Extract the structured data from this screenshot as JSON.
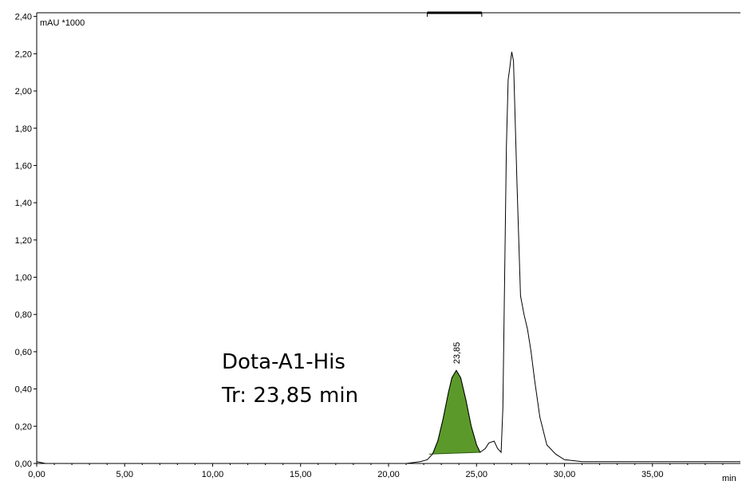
{
  "chart_data": {
    "type": "line",
    "y_unit_label": "mAU *1000",
    "x_unit_label": "min",
    "xlim": [
      0,
      40
    ],
    "ylim": [
      0,
      2.42
    ],
    "x_ticks": [
      0,
      5,
      10,
      15,
      20,
      25,
      30,
      35
    ],
    "x_tick_labels": [
      "0,00",
      "5,00",
      "10,00",
      "15,00",
      "20,00",
      "25,00",
      "30,00",
      "35,00"
    ],
    "y_ticks": [
      0,
      0.2,
      0.4,
      0.6,
      0.8,
      1.0,
      1.2,
      1.4,
      1.6,
      1.8,
      2.0,
      2.2,
      2.4
    ],
    "y_tick_labels": [
      "0,00",
      "0,20",
      "0,40",
      "0,60",
      "0,80",
      "1,00",
      "1,20",
      "1,40",
      "1,60",
      "1,80",
      "2,00",
      "2,20",
      "2,40"
    ],
    "grid": false,
    "integration_window": [
      22.2,
      25.3
    ],
    "series": [
      {
        "x": [
          0,
          0.5,
          2,
          5,
          10,
          15,
          20,
          21,
          21.8,
          22.2,
          22.5,
          22.8,
          23.1,
          23.4,
          23.6,
          23.85,
          24.1,
          24.4,
          24.7,
          25.0,
          25.2,
          25.5,
          25.7,
          26.0,
          26.2,
          26.4,
          26.5,
          26.6,
          26.7,
          26.8,
          26.9,
          27.0,
          27.1,
          27.3,
          27.5,
          27.7,
          27.9,
          28.1,
          28.3,
          28.6,
          29.0,
          29.5,
          30.0,
          31.0,
          33.0,
          35.0,
          38.0,
          40.0
        ],
        "values": [
          0.01,
          0.0,
          0.0,
          0.0,
          0.0,
          0.0,
          0.0,
          0.0,
          0.01,
          0.02,
          0.05,
          0.12,
          0.24,
          0.38,
          0.46,
          0.5,
          0.46,
          0.34,
          0.2,
          0.1,
          0.06,
          0.08,
          0.11,
          0.12,
          0.08,
          0.06,
          0.3,
          1.0,
          1.7,
          2.06,
          2.13,
          2.21,
          2.16,
          1.5,
          0.9,
          0.8,
          0.72,
          0.6,
          0.45,
          0.25,
          0.1,
          0.05,
          0.02,
          0.01,
          0.01,
          0.01,
          0.01,
          0.01
        ]
      }
    ],
    "highlighted_peak": {
      "retention_time": 23.85,
      "label": "23,85",
      "fill_color": "#5b9a2a",
      "x_start": 22.3,
      "x_end": 25.2
    },
    "annotations": [
      "Dota-A1-His",
      "Tr: 23,85 min"
    ]
  }
}
